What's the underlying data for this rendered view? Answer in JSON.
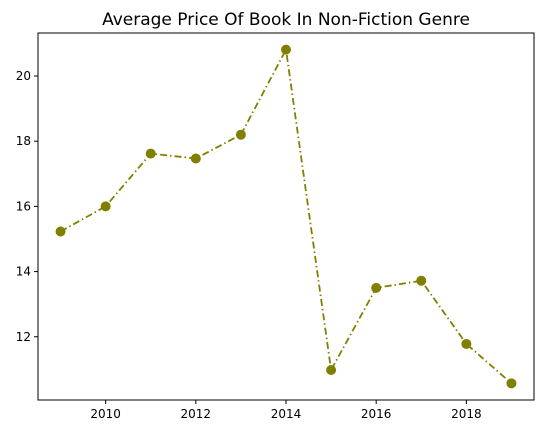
{
  "chart_data": {
    "type": "line",
    "title": "Average Price Of Book In Non-Fiction Genre",
    "xlabel": "",
    "ylabel": "",
    "x": [
      2009,
      2010,
      2011,
      2012,
      2013,
      2014,
      2015,
      2016,
      2017,
      2018,
      2019
    ],
    "series": [
      {
        "values": [
          15.23,
          16.0,
          17.62,
          17.47,
          18.2,
          20.81,
          10.98,
          13.5,
          13.72,
          11.78,
          10.57
        ]
      }
    ],
    "xlim": [
      2008.5,
      2019.5
    ],
    "ylim": [
      10.06,
      21.32
    ],
    "xticks": [
      2010,
      2012,
      2014,
      2016,
      2018
    ],
    "xtick_labels": [
      "2010",
      "2012",
      "2014",
      "2016",
      "2018"
    ],
    "yticks": [
      12,
      14,
      16,
      18,
      20
    ],
    "ytick_labels": [
      "12",
      "14",
      "16",
      "18",
      "20"
    ],
    "grid": false,
    "line_style": "dash-dot",
    "marker": "circle",
    "color": "#808000"
  }
}
